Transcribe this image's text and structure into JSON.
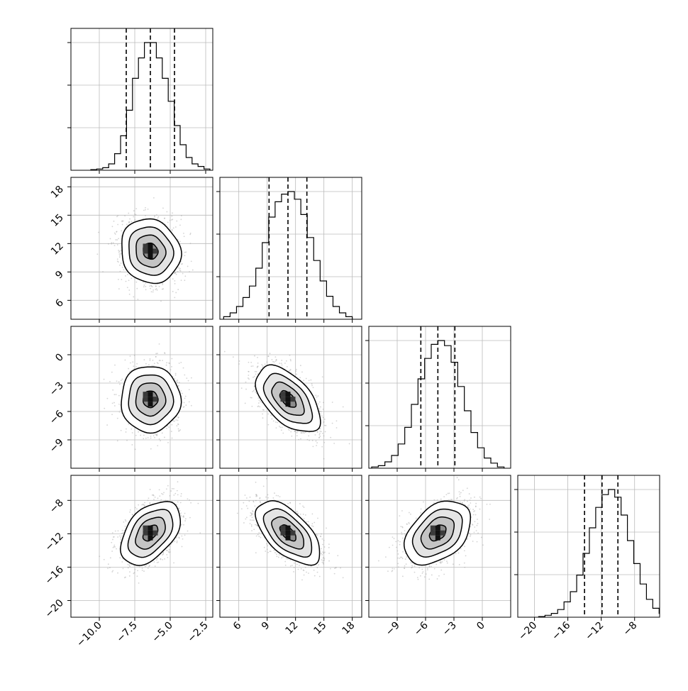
{
  "chart_data": {
    "type": "corner",
    "title": "",
    "variables": [
      {
        "lim": [
          -12,
          -2
        ],
        "ticks": [
          -10.0,
          -7.5,
          -5.0,
          -2.5
        ],
        "tick_labels": [
          "−10.0",
          "−7.5",
          "−5.0",
          "−2.5"
        ],
        "mean": -6.4,
        "sd": 1.05,
        "quantiles": [
          -8.1,
          -6.4,
          -4.7
        ],
        "hist": [
          0.005,
          0.01,
          0.02,
          0.05,
          0.13,
          0.27,
          0.47,
          0.72,
          0.88,
          1.0,
          1.0,
          0.88,
          0.72,
          0.54,
          0.35,
          0.2,
          0.1,
          0.05,
          0.03,
          0.01
        ]
      },
      {
        "lim": [
          4,
          19
        ],
        "ticks": [
          6,
          9,
          12,
          15,
          18
        ],
        "tick_labels": [
          "6",
          "9",
          "12",
          "15",
          "18"
        ],
        "mean": 11.2,
        "sd": 1.7,
        "quantiles": [
          9.2,
          11.2,
          13.2
        ],
        "hist": [
          0.02,
          0.05,
          0.1,
          0.17,
          0.26,
          0.4,
          0.6,
          0.8,
          0.92,
          0.98,
          1.0,
          0.94,
          0.82,
          0.64,
          0.46,
          0.3,
          0.18,
          0.1,
          0.05,
          0.02
        ]
      },
      {
        "lim": [
          -12,
          3
        ],
        "ticks": [
          -9,
          -6,
          -3,
          0
        ],
        "tick_labels": [
          "−9",
          "−6",
          "−3",
          "0"
        ],
        "mean": -4.7,
        "sd": 1.75,
        "quantiles": [
          -6.5,
          -4.7,
          -2.9
        ],
        "hist": [
          0.01,
          0.02,
          0.05,
          0.1,
          0.19,
          0.32,
          0.5,
          0.7,
          0.86,
          0.97,
          1.0,
          0.96,
          0.83,
          0.64,
          0.45,
          0.28,
          0.16,
          0.08,
          0.04,
          0.01
        ]
      },
      {
        "lim": [
          -22,
          -5
        ],
        "ticks": [
          -20,
          -16,
          -12,
          -8
        ],
        "tick_labels": [
          "−20",
          "−16",
          "−12",
          "−8"
        ],
        "mean": -11.9,
        "sd": 1.9,
        "quantiles": [
          -14,
          -11.9,
          -10
        ],
        "hist": [
          0.005,
          0.015,
          0.03,
          0.06,
          0.12,
          0.2,
          0.33,
          0.5,
          0.7,
          0.86,
          0.96,
          1.0,
          0.94,
          0.8,
          0.6,
          0.42,
          0.26,
          0.14,
          0.07,
          0.03
        ]
      }
    ],
    "correlations": [
      {
        "i": 1,
        "j": 0,
        "rho": -0.1
      },
      {
        "i": 2,
        "j": 0,
        "rho": 0.0
      },
      {
        "i": 2,
        "j": 1,
        "rho": -0.55
      },
      {
        "i": 3,
        "j": 0,
        "rho": 0.45
      },
      {
        "i": 3,
        "j": 1,
        "rho": -0.6
      },
      {
        "i": 3,
        "j": 2,
        "rho": 0.4
      }
    ],
    "contour_levels_sigma": [
      0.5,
      1.0,
      1.5,
      2.0
    ],
    "grid": true,
    "colors": {
      "contour": "#000000",
      "scatter": "#a0a0a0",
      "grid": "#bbbbbb",
      "quantile_line": "#000000"
    }
  }
}
